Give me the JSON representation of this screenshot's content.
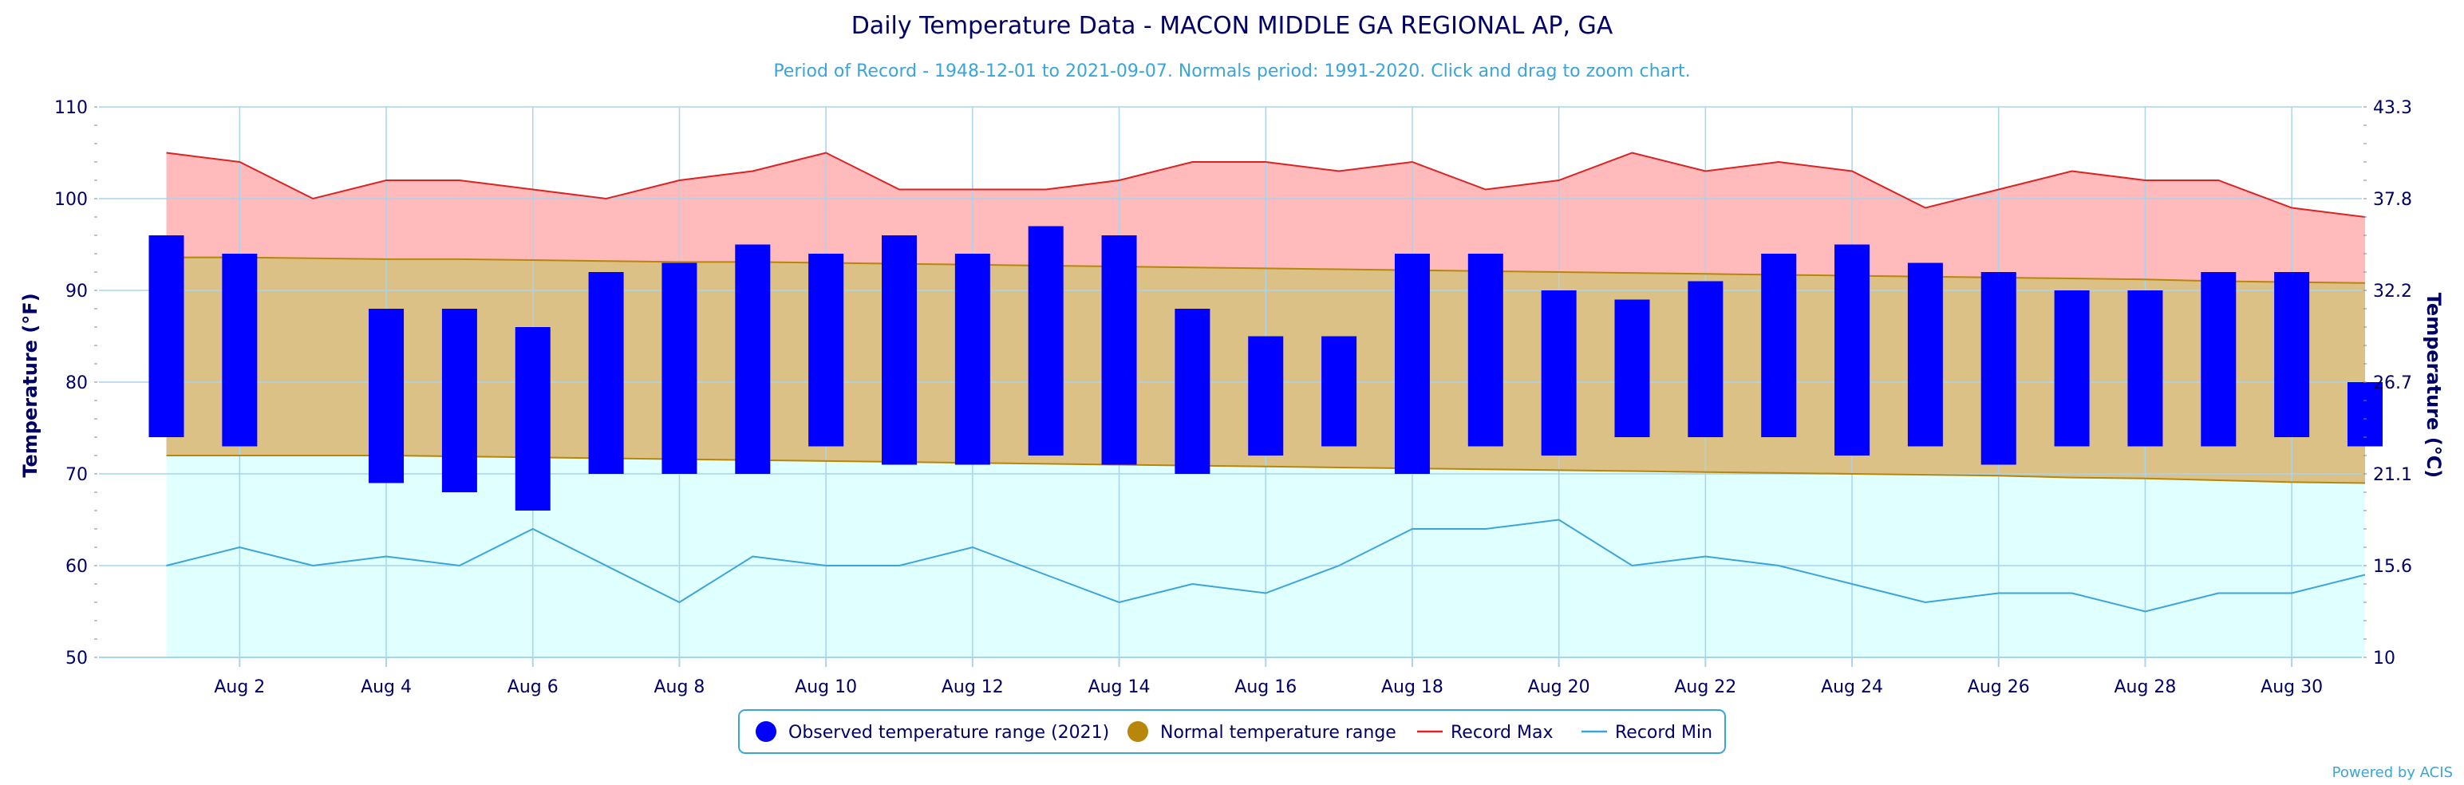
{
  "chart_data": {
    "type": "bar",
    "title": "Daily Temperature Data - MACON MIDDLE GA REGIONAL AP, GA",
    "subtitle": "Period of Record - 1948-12-01 to 2021-09-07. Normals period: 1991-2020. Click and drag to zoom chart.",
    "ylabel_left": "Temperature (°F)",
    "ylabel_right": "Temperature (°C)",
    "ylim": [
      50,
      110
    ],
    "y_ticks_left": [
      "50",
      "60",
      "70",
      "80",
      "90",
      "100",
      "110"
    ],
    "y_ticks_right": [
      "10",
      "15.6",
      "21.1",
      "26.7",
      "32.2",
      "37.8",
      "43.3"
    ],
    "x_tick_labels": [
      "Aug 2",
      "Aug 4",
      "Aug 6",
      "Aug 8",
      "Aug 10",
      "Aug 12",
      "Aug 14",
      "Aug 16",
      "Aug 18",
      "Aug 20",
      "Aug 22",
      "Aug 24",
      "Aug 26",
      "Aug 28",
      "Aug 30"
    ],
    "x_tick_days": [
      2,
      4,
      6,
      8,
      10,
      12,
      14,
      16,
      18,
      20,
      22,
      24,
      26,
      28,
      30
    ],
    "days": [
      1,
      2,
      3,
      4,
      5,
      6,
      7,
      8,
      9,
      10,
      11,
      12,
      13,
      14,
      15,
      16,
      17,
      18,
      19,
      20,
      21,
      22,
      23,
      24,
      25,
      26,
      27,
      28,
      29,
      30,
      31
    ],
    "series": [
      {
        "name": "Observed temperature range (2021)",
        "low": [
          74,
          73,
          null,
          69,
          68,
          66,
          70,
          70,
          70,
          73,
          71,
          71,
          72,
          71,
          70,
          72,
          73,
          70,
          73,
          72,
          74,
          74,
          74,
          72,
          73,
          71,
          73,
          73,
          73,
          74,
          73
        ],
        "high": [
          96,
          94,
          null,
          88,
          88,
          86,
          92,
          93,
          95,
          94,
          96,
          94,
          97,
          96,
          88,
          85,
          85,
          94,
          94,
          90,
          89,
          91,
          94,
          95,
          93,
          92,
          90,
          90,
          92,
          92,
          80
        ]
      },
      {
        "name": "Normal temperature range",
        "low": [
          72,
          72,
          72,
          72,
          71.9,
          71.8,
          71.7,
          71.6,
          71.5,
          71.4,
          71.3,
          71.2,
          71.1,
          71.0,
          70.9,
          70.8,
          70.7,
          70.6,
          70.5,
          70.4,
          70.3,
          70.2,
          70.1,
          70.0,
          69.9,
          69.8,
          69.6,
          69.5,
          69.3,
          69.1,
          69.0
        ],
        "high": [
          93.6,
          93.6,
          93.5,
          93.4,
          93.4,
          93.3,
          93.2,
          93.1,
          93.1,
          93.0,
          92.9,
          92.8,
          92.7,
          92.6,
          92.5,
          92.4,
          92.3,
          92.2,
          92.1,
          92.0,
          91.9,
          91.8,
          91.7,
          91.6,
          91.5,
          91.4,
          91.3,
          91.2,
          91.0,
          90.9,
          90.8
        ]
      },
      {
        "name": "Record Max",
        "values": [
          105,
          104,
          100,
          102,
          102,
          101,
          100,
          102,
          103,
          105,
          101,
          101,
          101,
          102,
          104,
          104,
          103,
          104,
          101,
          102,
          105,
          103,
          104,
          103,
          99,
          101,
          103,
          102,
          102,
          99,
          98
        ]
      },
      {
        "name": "Record Min",
        "values": [
          60,
          62,
          60,
          61,
          60,
          64,
          60,
          56,
          61,
          60,
          60,
          62,
          59,
          56,
          58,
          57,
          60,
          64,
          64,
          65,
          60,
          61,
          60,
          58,
          56,
          57,
          57,
          55,
          57,
          57,
          59
        ]
      }
    ],
    "legend": {
      "position": "bottom-center",
      "items": [
        {
          "label": "Observed temperature range (2021)",
          "symbol": "circle",
          "color": "#0000FF"
        },
        {
          "label": "Normal temperature range",
          "symbol": "circle",
          "color": "#B8860B"
        },
        {
          "label": "Record Max",
          "symbol": "line",
          "color": "#DD2222"
        },
        {
          "label": "Record Min",
          "symbol": "line",
          "color": "#3AA5D8"
        }
      ]
    },
    "colors": {
      "observed": "#0000FF",
      "normal_fill": "#DCC186",
      "normal_line": "#B8860B",
      "record_max_fill": "#FFBBBB",
      "record_max_line": "#DD2222",
      "record_min_fill": "#E0FFFF",
      "record_min_line": "#3AA5D8",
      "grid": "#A8D4EE",
      "text": "#000066"
    },
    "grid": true,
    "credits": "Powered by ACIS"
  }
}
